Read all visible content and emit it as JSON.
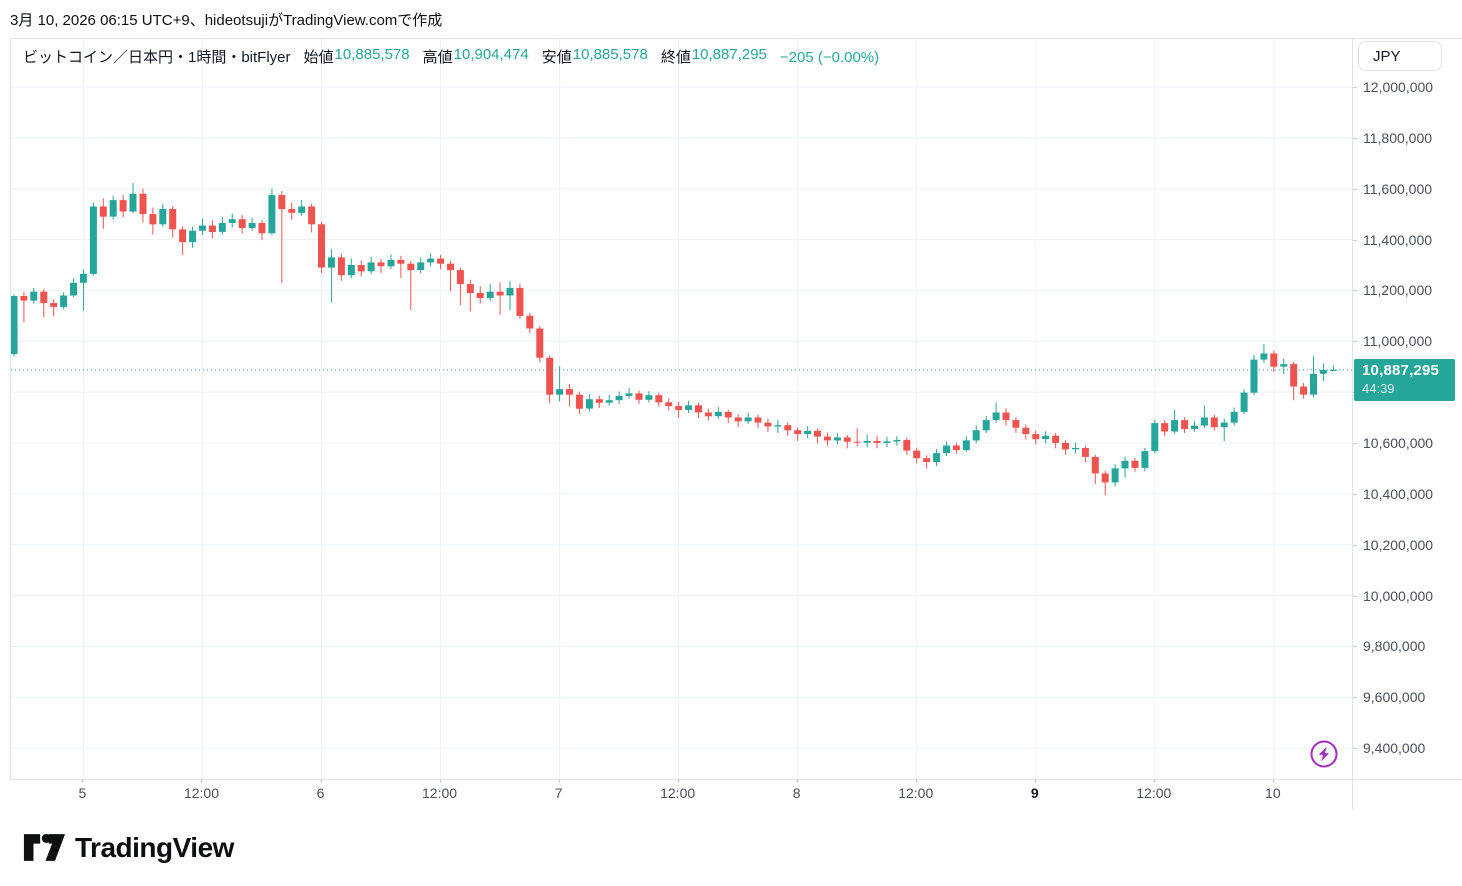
{
  "header": {
    "attribution": "3月 10, 2026 06:15 UTC+9、hideotsujiがTradingView.comで作成"
  },
  "legend": {
    "symbol": "ビットコイン／日本円・1時間・bitFlyer",
    "open_label": "始値",
    "open_value": "10,885,578",
    "high_label": "高値",
    "high_value": "10,904,474",
    "low_label": "安値",
    "low_value": "10,885,578",
    "close_label": "終値",
    "close_value": "10,887,295",
    "change": "−205 (−0.00%)"
  },
  "price_axis": {
    "currency_button": "JPY",
    "labels": [
      "12,000,000",
      "11,800,000",
      "11,600,000",
      "11,400,000",
      "11,200,000",
      "11,000,000",
      "10,800,000",
      "10,600,000",
      "10,400,000",
      "10,200,000",
      "10,000,000",
      "9,800,000",
      "9,600,000",
      "9,400,000"
    ],
    "last_price_label": "10,887,295",
    "countdown": "44:39"
  },
  "footer": {
    "brand": "TradingView"
  },
  "colors": {
    "up": "#26a69a",
    "down": "#ef5350",
    "badge": "#26a69a",
    "grid": "#eef2f7",
    "frame": "#e0e3eb",
    "purple": "#a32cc0",
    "axis_text": "#4a4e59"
  },
  "chart_data": {
    "type": "candlestick",
    "title": "ビットコイン／日本円・1時間・bitFlyer",
    "interval": "1h",
    "start_time": "2026-03-04 17:00 UTC+9",
    "end_time": "2026-03-10 06:00 UTC+9",
    "ylim": [
      9278364,
      12188784
    ],
    "y_ticks": [
      12000000,
      11800000,
      11600000,
      11400000,
      11200000,
      11000000,
      10800000,
      10600000,
      10400000,
      10200000,
      10000000,
      9800000,
      9600000,
      9400000
    ],
    "x_ticks": [
      {
        "index": 7,
        "label": "5",
        "bold": false
      },
      {
        "index": 19,
        "label": "12:00",
        "bold": false
      },
      {
        "index": 31,
        "label": "6",
        "bold": false
      },
      {
        "index": 43,
        "label": "12:00",
        "bold": false
      },
      {
        "index": 55,
        "label": "7",
        "bold": false
      },
      {
        "index": 67,
        "label": "12:00",
        "bold": false
      },
      {
        "index": 79,
        "label": "8",
        "bold": false
      },
      {
        "index": 91,
        "label": "12:00",
        "bold": false
      },
      {
        "index": 103,
        "label": "9",
        "bold": true
      },
      {
        "index": 115,
        "label": "12:00",
        "bold": false
      },
      {
        "index": 127,
        "label": "10",
        "bold": false
      }
    ],
    "last_close": 10887295,
    "current_ohlc": {
      "open": 10885578,
      "high": 10904474,
      "low": 10885578,
      "close": 10887295,
      "change": -205,
      "change_pct": "-0.00%"
    },
    "candles": [
      [
        10950000,
        11185000,
        10940000,
        11178000
      ],
      [
        11178000,
        11195000,
        11075000,
        11160000
      ],
      [
        11160000,
        11210000,
        11148000,
        11195000
      ],
      [
        11195000,
        11205000,
        11095000,
        11150000
      ],
      [
        11150000,
        11165000,
        11098000,
        11135000
      ],
      [
        11135000,
        11192000,
        11125000,
        11180000
      ],
      [
        11180000,
        11246000,
        11174000,
        11230000
      ],
      [
        11230000,
        11282000,
        11120000,
        11265000
      ],
      [
        11265000,
        11545000,
        11258000,
        11530000
      ],
      [
        11530000,
        11562000,
        11442000,
        11490000
      ],
      [
        11490000,
        11572000,
        11478000,
        11555000
      ],
      [
        11555000,
        11576000,
        11488000,
        11510000
      ],
      [
        11510000,
        11622000,
        11504000,
        11580000
      ],
      [
        11580000,
        11600000,
        11468000,
        11500000
      ],
      [
        11500000,
        11526000,
        11420000,
        11460000
      ],
      [
        11460000,
        11540000,
        11450000,
        11520000
      ],
      [
        11520000,
        11532000,
        11408000,
        11440000
      ],
      [
        11440000,
        11452000,
        11338000,
        11390000
      ],
      [
        11390000,
        11450000,
        11368000,
        11435000
      ],
      [
        11435000,
        11482000,
        11418000,
        11455000
      ],
      [
        11455000,
        11476000,
        11404000,
        11430000
      ],
      [
        11430000,
        11490000,
        11420000,
        11465000
      ],
      [
        11465000,
        11502000,
        11448000,
        11480000
      ],
      [
        11480000,
        11496000,
        11424000,
        11445000
      ],
      [
        11445000,
        11486000,
        11434000,
        11465000
      ],
      [
        11465000,
        11476000,
        11398000,
        11425000
      ],
      [
        11425000,
        11600000,
        11418000,
        11575000
      ],
      [
        11575000,
        11590000,
        11230000,
        11520000
      ],
      [
        11520000,
        11546000,
        11478000,
        11505000
      ],
      [
        11505000,
        11556000,
        11494000,
        11530000
      ],
      [
        11530000,
        11540000,
        11428000,
        11460000
      ],
      [
        11460000,
        11470000,
        11268000,
        11290000
      ],
      [
        11290000,
        11362000,
        11152000,
        11330000
      ],
      [
        11330000,
        11344000,
        11238000,
        11260000
      ],
      [
        11260000,
        11326000,
        11248000,
        11300000
      ],
      [
        11300000,
        11318000,
        11254000,
        11275000
      ],
      [
        11275000,
        11332000,
        11264000,
        11310000
      ],
      [
        11310000,
        11324000,
        11268000,
        11295000
      ],
      [
        11295000,
        11342000,
        11284000,
        11320000
      ],
      [
        11320000,
        11336000,
        11248000,
        11305000
      ],
      [
        11305000,
        11316000,
        11122000,
        11280000
      ],
      [
        11280000,
        11330000,
        11268000,
        11310000
      ],
      [
        11310000,
        11346000,
        11294000,
        11325000
      ],
      [
        11325000,
        11340000,
        11284000,
        11305000
      ],
      [
        11305000,
        11316000,
        11198000,
        11280000
      ],
      [
        11280000,
        11290000,
        11142000,
        11225000
      ],
      [
        11225000,
        11242000,
        11118000,
        11190000
      ],
      [
        11190000,
        11216000,
        11148000,
        11170000
      ],
      [
        11170000,
        11226000,
        11158000,
        11195000
      ],
      [
        11195000,
        11232000,
        11104000,
        11180000
      ],
      [
        11180000,
        11236000,
        11122000,
        11210000
      ],
      [
        11210000,
        11226000,
        11088000,
        11100000
      ],
      [
        11100000,
        11112000,
        11032000,
        11050000
      ],
      [
        11050000,
        11060000,
        10918000,
        10935000
      ],
      [
        10935000,
        10944000,
        10758000,
        10790000
      ],
      [
        10790000,
        10902000,
        10764000,
        10812000
      ],
      [
        10812000,
        10832000,
        10744000,
        10790000
      ],
      [
        10790000,
        10802000,
        10714000,
        10735000
      ],
      [
        10735000,
        10792000,
        10724000,
        10772000
      ],
      [
        10772000,
        10786000,
        10738000,
        10758000
      ],
      [
        10758000,
        10790000,
        10746000,
        10768000
      ],
      [
        10768000,
        10802000,
        10752000,
        10785000
      ],
      [
        10785000,
        10816000,
        10774000,
        10795000
      ],
      [
        10795000,
        10806000,
        10754000,
        10770000
      ],
      [
        10770000,
        10803000,
        10760000,
        10788000
      ],
      [
        10788000,
        10798000,
        10744000,
        10760000
      ],
      [
        10760000,
        10776000,
        10728000,
        10745000
      ],
      [
        10745000,
        10762000,
        10698000,
        10730000
      ],
      [
        10730000,
        10766000,
        10718000,
        10748000
      ],
      [
        10748000,
        10758000,
        10698000,
        10720000
      ],
      [
        10720000,
        10736000,
        10688000,
        10705000
      ],
      [
        10705000,
        10741000,
        10694000,
        10722000
      ],
      [
        10722000,
        10731000,
        10678000,
        10700000
      ],
      [
        10700000,
        10713000,
        10663000,
        10685000
      ],
      [
        10685000,
        10719000,
        10674000,
        10700000
      ],
      [
        10700000,
        10711000,
        10659000,
        10680000
      ],
      [
        10680000,
        10696000,
        10644000,
        10665000
      ],
      [
        10665000,
        10691000,
        10639000,
        10670000
      ],
      [
        10670000,
        10681000,
        10629000,
        10650000
      ],
      [
        10650000,
        10661000,
        10609000,
        10635000
      ],
      [
        10635000,
        10666000,
        10619000,
        10648000
      ],
      [
        10648000,
        10656000,
        10599000,
        10625000
      ],
      [
        10625000,
        10641000,
        10589000,
        10610000
      ],
      [
        10610000,
        10639000,
        10594000,
        10622000
      ],
      [
        10622000,
        10631000,
        10579000,
        10605000
      ],
      [
        10605000,
        10658000,
        10588000,
        10601000
      ],
      [
        10601000,
        10634000,
        10584000,
        10608000
      ],
      [
        10608000,
        10629000,
        10579000,
        10600000
      ],
      [
        10600000,
        10624000,
        10584000,
        10606000
      ],
      [
        10606000,
        10627000,
        10589000,
        10612000
      ],
      [
        10612000,
        10621000,
        10553000,
        10570000
      ],
      [
        10570000,
        10581000,
        10519000,
        10540000
      ],
      [
        10540000,
        10551000,
        10499000,
        10525000
      ],
      [
        10525000,
        10576000,
        10509000,
        10560000
      ],
      [
        10560000,
        10606000,
        10549000,
        10590000
      ],
      [
        10590000,
        10601000,
        10557000,
        10572000
      ],
      [
        10572000,
        10626000,
        10564000,
        10610000
      ],
      [
        10610000,
        10669000,
        10599000,
        10650000
      ],
      [
        10650000,
        10706000,
        10639000,
        10690000
      ],
      [
        10690000,
        10759000,
        10679000,
        10720000
      ],
      [
        10720000,
        10736000,
        10669000,
        10690000
      ],
      [
        10690000,
        10701000,
        10639000,
        10660000
      ],
      [
        10660000,
        10673000,
        10614000,
        10635000
      ],
      [
        10635000,
        10649000,
        10594000,
        10615000
      ],
      [
        10615000,
        10646000,
        10599000,
        10628000
      ],
      [
        10628000,
        10639000,
        10579000,
        10600000
      ],
      [
        10600000,
        10611000,
        10554000,
        10575000
      ],
      [
        10575000,
        10601000,
        10559000,
        10580000
      ],
      [
        10580000,
        10589000,
        10524000,
        10545000
      ],
      [
        10545000,
        10553000,
        10439000,
        10480000
      ],
      [
        10480000,
        10491000,
        10394000,
        10445000
      ],
      [
        10445000,
        10516000,
        10429000,
        10500000
      ],
      [
        10500000,
        10546000,
        10464000,
        10530000
      ],
      [
        10530000,
        10541000,
        10487000,
        10502000
      ],
      [
        10502000,
        10581000,
        10489000,
        10568000
      ],
      [
        10568000,
        10691000,
        10559000,
        10678000
      ],
      [
        10678000,
        10689000,
        10627000,
        10645000
      ],
      [
        10645000,
        10731000,
        10634000,
        10690000
      ],
      [
        10690000,
        10701000,
        10639000,
        10655000
      ],
      [
        10655000,
        10686000,
        10644000,
        10668000
      ],
      [
        10668000,
        10746000,
        10659000,
        10700000
      ],
      [
        10700000,
        10711000,
        10649000,
        10662000
      ],
      [
        10662000,
        10696000,
        10607000,
        10680000
      ],
      [
        10680000,
        10739000,
        10669000,
        10722000
      ],
      [
        10722000,
        10811000,
        10714000,
        10798000
      ],
      [
        10798000,
        10946000,
        10789000,
        10928000
      ],
      [
        10928000,
        10988000,
        10914000,
        10952000
      ],
      [
        10952000,
        10963000,
        10879000,
        10900000
      ],
      [
        10900000,
        10931000,
        10871000,
        10910000
      ],
      [
        10910000,
        10919000,
        10768000,
        10822000
      ],
      [
        10822000,
        10836000,
        10774000,
        10790000
      ],
      [
        10790000,
        10941000,
        10781000,
        10872000
      ],
      [
        10872000,
        10913000,
        10844000,
        10887500
      ],
      [
        10885578,
        10904474,
        10885578,
        10887295
      ]
    ]
  }
}
